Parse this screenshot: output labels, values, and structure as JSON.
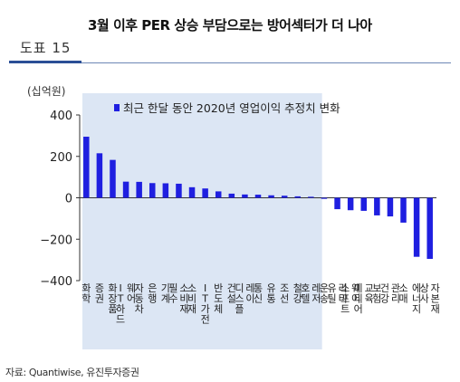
{
  "figure_label": "도표 15",
  "title": "3월 이후 PER 상승 부담으로는 방어섹터가 더 나아",
  "source": "자료: Quantiwise, 유진투자증권",
  "chart_data": {
    "type": "bar",
    "title": "",
    "unit_label": "(십억원)",
    "legend": "최근 한달 동안 2020년 영업이익 추정치 변화",
    "legend_position": "top",
    "ylim": [
      -400,
      400
    ],
    "yticks": [
      400,
      200,
      0,
      -200,
      -400
    ],
    "grid": false,
    "shaded_region": "positive categories",
    "colors": {
      "bar": "#1f1fe0",
      "shade": "#dce6f4",
      "axis": "#333333"
    },
    "categories": [
      "화학",
      "증권",
      "화장품",
      "IT하드웨어",
      "자동차",
      "은행",
      "기계",
      "필수",
      "소비재",
      "IT가전",
      "반도체",
      "건설",
      "디스플레이",
      "통신",
      "유통",
      "조선",
      "철강",
      "호텔레저",
      "운송",
      "유틸리티",
      "소프트웨어",
      "미디어교육",
      "보험",
      "건강관리",
      "소매",
      "에너지",
      "상사자본재"
    ],
    "category_lines": [
      [
        "화학"
      ],
      [
        "증권"
      ],
      [
        "화장품"
      ],
      [
        "IT하드",
        "웨어"
      ],
      [
        "자동차"
      ],
      [
        "은행"
      ],
      [
        "기계"
      ],
      [
        "필수",
        "소비재"
      ],
      [
        "소비재"
      ],
      [
        "IT가전"
      ],
      [
        "반도체"
      ],
      [
        "건설"
      ],
      [
        "디스플",
        "레이"
      ],
      [
        "통신"
      ],
      [
        "유통"
      ],
      [
        "조선"
      ],
      [
        "철강"
      ],
      [
        "호텔",
        "레저"
      ],
      [
        "운송"
      ],
      [
        "유틸",
        "리티"
      ],
      [
        "소프트",
        "웨어"
      ],
      [
        "미디어",
        "교육"
      ],
      [
        "보험"
      ],
      [
        "건강",
        "관리"
      ],
      [
        "소매"
      ],
      [
        "에너지"
      ],
      [
        "상사",
        "자본재"
      ]
    ],
    "values": [
      295,
      215,
      183,
      78,
      77,
      71,
      70,
      68,
      51,
      45,
      31,
      20,
      16,
      15,
      12,
      10,
      7,
      5,
      -5,
      -55,
      -60,
      -63,
      -85,
      -90,
      -120,
      -285,
      -295
    ]
  }
}
